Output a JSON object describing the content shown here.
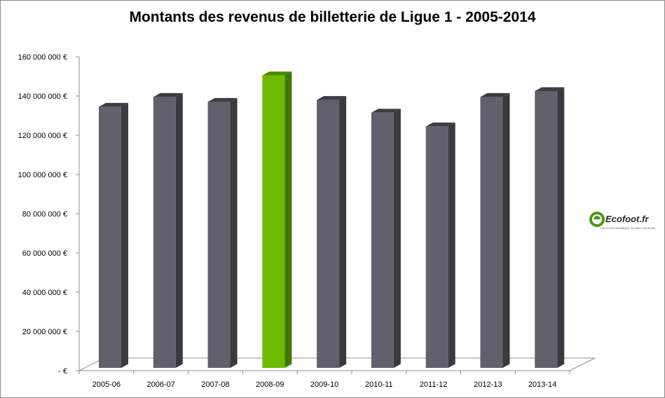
{
  "chart_data": {
    "type": "bar",
    "title": "Montants des revenus de billetterie de Ligue 1 - 2005-2014",
    "xlabel": "",
    "ylabel": "",
    "categories": [
      "2005-06",
      "2006-07",
      "2007-08",
      "2008-09",
      "2009-10",
      "2010-11",
      "2011-12",
      "2012-13",
      "2013-14"
    ],
    "values": [
      134500000,
      139500000,
      137000000,
      150500000,
      138000000,
      131500000,
      124500000,
      139500000,
      142500000
    ],
    "ylim": [
      0,
      160000000
    ],
    "yticks": [
      {
        "value": 0,
        "label": "-  €"
      },
      {
        "value": 20000000,
        "label": "20 000 000 €"
      },
      {
        "value": 40000000,
        "label": "40 000 000 €"
      },
      {
        "value": 60000000,
        "label": "60 000 000 €"
      },
      {
        "value": 80000000,
        "label": "80 000 000 €"
      },
      {
        "value": 100000000,
        "label": "100 000 000 €"
      },
      {
        "value": 120000000,
        "label": "120 000 000 €"
      },
      {
        "value": 140000000,
        "label": "140 000 000 €"
      },
      {
        "value": 160000000,
        "label": "160 000 000 €"
      }
    ],
    "grid": false,
    "legend": "none",
    "highlight_category": "2008-09",
    "colors": {
      "bar": "#62606a",
      "bar_top": "#3e3c44",
      "bar_side": "#3a393f",
      "highlight": "#6dba00",
      "highlight_top": "#4a8a00",
      "highlight_side": "#3e7a00"
    }
  },
  "logo": {
    "text": "Ecofoot.fr",
    "tagline": "L'ACTU ÉCONOMIQUE DU BALLON ROND"
  }
}
